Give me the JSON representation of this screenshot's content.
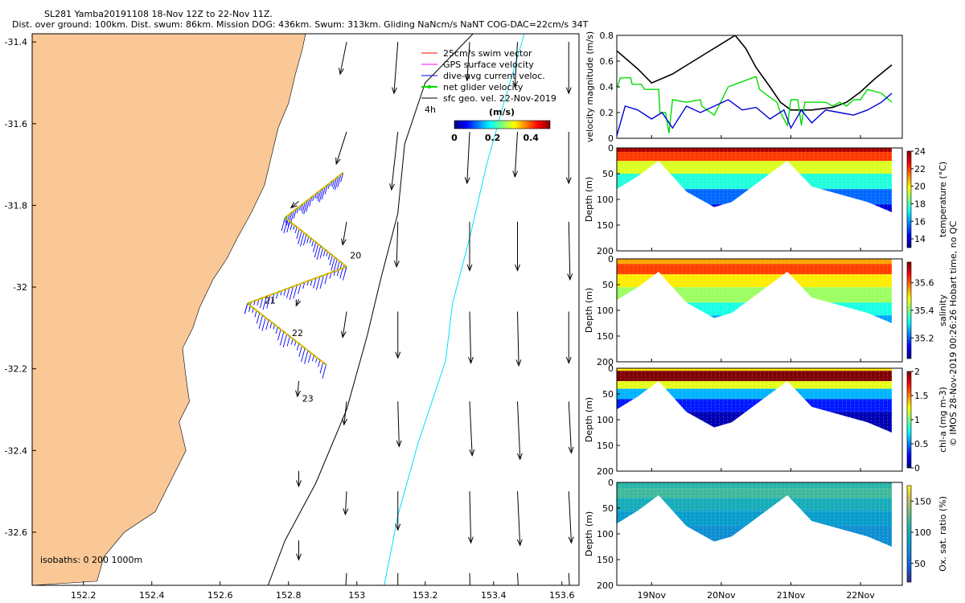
{
  "header": {
    "title": "SL281 Yamba20191108 18-Nov 12Z to 22-Nov 11Z.",
    "stats": "Dist. over ground: 100km. Dist. swum: 86km. Mission DOG: 436km. Swum: 313km. Gliding NaNcm/s NaNT COG-DAC=22cm/s 34T"
  },
  "colors": {
    "land": "#f9c896",
    "ocean": "#ffffff",
    "swim_vector": "#ff0000",
    "gps_velocity": "#ff00ff",
    "dive_avg": "#0000ff",
    "net_glider": "#00dd00",
    "sfc_geo": "#000000",
    "isobath_200": "#000000",
    "isobath_1000": "#00e0ff",
    "vel_black": "#000000",
    "vel_green": "#00dd00",
    "vel_blue": "#0000dd"
  },
  "chart_data": [
    {
      "type": "map",
      "name": "glider-track-map",
      "xlim": [
        152.05,
        153.65
      ],
      "ylim": [
        -32.73,
        -31.38
      ],
      "x_ticks": [
        152.2,
        152.4,
        152.6,
        152.8,
        153,
        153.2,
        153.4,
        153.6
      ],
      "x_tick_labels": [
        "152.2",
        "152.4",
        "152.6",
        "152.8",
        "153",
        "153.2",
        "153.4",
        "153.6"
      ],
      "y_ticks": [
        -31.4,
        -31.6,
        -31.8,
        -32,
        -32.2,
        -32.4,
        -32.6
      ],
      "y_tick_labels": [
        "-31.4",
        "-31.6",
        "-31.8",
        "-32",
        "-32.2",
        "-32.4",
        "-32.6"
      ],
      "legend": [
        {
          "label": "25cm/s swim vector",
          "color": "#ff0000",
          "marker": "line"
        },
        {
          "label": "GPS surface velocity",
          "color": "#ff00ff",
          "marker": "line"
        },
        {
          "label": "dive-avg current veloc.",
          "color": "#0000ff",
          "marker": "line"
        },
        {
          "label": "net glider velocity",
          "color": "#00dd00",
          "marker": "dot-line"
        },
        {
          "label": "sfc geo. vel. 22-Nov-2019",
          "color": "#000000",
          "marker": "line"
        }
      ],
      "legend_extra": "4h",
      "colorbar_title": "(m/s)",
      "colorbar_ticks": [
        0,
        0.2,
        0.4
      ],
      "colorbar_tick_labels": [
        "0",
        "0.2",
        "0.4"
      ],
      "colorbar_range": [
        0,
        0.5
      ],
      "isobaths_text": "isobaths: 0   200   1000m",
      "day_labels": [
        {
          "text": "20",
          "lon": 152.98,
          "lat": -31.93
        },
        {
          "text": "21",
          "lon": 152.73,
          "lat": -32.04
        },
        {
          "text": "22",
          "lon": 152.81,
          "lat": -32.12
        },
        {
          "text": "23",
          "lon": 152.84,
          "lat": -32.28
        }
      ],
      "coastline": [
        [
          152.05,
          -32.73
        ],
        [
          152.24,
          -32.72
        ],
        [
          152.26,
          -32.66
        ],
        [
          152.32,
          -32.6
        ],
        [
          152.41,
          -32.55
        ],
        [
          152.47,
          -32.45
        ],
        [
          152.5,
          -32.4
        ],
        [
          152.48,
          -32.33
        ],
        [
          152.51,
          -32.28
        ],
        [
          152.5,
          -32.22
        ],
        [
          152.49,
          -32.15
        ],
        [
          152.52,
          -32.1
        ],
        [
          152.54,
          -32.05
        ],
        [
          152.58,
          -31.98
        ],
        [
          152.62,
          -31.93
        ],
        [
          152.65,
          -31.88
        ],
        [
          152.69,
          -31.82
        ],
        [
          152.73,
          -31.75
        ],
        [
          152.75,
          -31.68
        ],
        [
          152.77,
          -31.61
        ],
        [
          152.8,
          -31.55
        ],
        [
          152.82,
          -31.48
        ],
        [
          152.84,
          -31.42
        ],
        [
          152.85,
          -31.38
        ],
        [
          152.05,
          -31.38
        ]
      ],
      "isobath_200m": [
        [
          153.34,
          -31.38
        ],
        [
          153.2,
          -31.5
        ],
        [
          153.14,
          -31.65
        ],
        [
          153.12,
          -31.82
        ],
        [
          153.07,
          -31.98
        ],
        [
          153.03,
          -32.12
        ],
        [
          152.97,
          -32.3
        ],
        [
          152.88,
          -32.48
        ],
        [
          152.79,
          -32.62
        ],
        [
          152.74,
          -32.73
        ]
      ],
      "isobath_1000m": [
        [
          153.49,
          -31.38
        ],
        [
          153.43,
          -31.55
        ],
        [
          153.38,
          -31.7
        ],
        [
          153.33,
          -31.88
        ],
        [
          153.28,
          -32.04
        ],
        [
          153.26,
          -32.18
        ],
        [
          153.18,
          -32.38
        ],
        [
          153.12,
          -32.56
        ],
        [
          153.08,
          -32.73
        ]
      ],
      "track_segments": [
        {
          "from": [
            152.96,
            -31.72
          ],
          "to": [
            152.79,
            -31.83
          ]
        },
        {
          "from": [
            152.79,
            -31.83
          ],
          "to": [
            152.97,
            -31.95
          ]
        },
        {
          "from": [
            152.97,
            -31.95
          ],
          "to": [
            152.68,
            -32.04
          ]
        },
        {
          "from": [
            152.68,
            -32.04
          ],
          "to": [
            152.91,
            -32.19
          ]
        }
      ],
      "current_dir_deg": 195,
      "geo_vectors": [
        {
          "lon": 152.97,
          "lat": -31.4,
          "u": -0.05,
          "v": -0.25
        },
        {
          "lon": 153.12,
          "lat": -31.4,
          "u": -0.03,
          "v": -0.4
        },
        {
          "lon": 153.33,
          "lat": -31.4,
          "u": -0.02,
          "v": -0.3
        },
        {
          "lon": 153.47,
          "lat": -31.4,
          "u": -0.02,
          "v": -0.35
        },
        {
          "lon": 153.62,
          "lat": -31.4,
          "u": 0.0,
          "v": -0.4
        },
        {
          "lon": 152.97,
          "lat": -31.62,
          "u": -0.08,
          "v": -0.25
        },
        {
          "lon": 153.12,
          "lat": -31.62,
          "u": -0.05,
          "v": -0.45
        },
        {
          "lon": 153.33,
          "lat": -31.62,
          "u": -0.02,
          "v": -0.4
        },
        {
          "lon": 153.47,
          "lat": -31.62,
          "u": -0.02,
          "v": -0.35
        },
        {
          "lon": 153.62,
          "lat": -31.62,
          "u": 0.0,
          "v": -0.4
        },
        {
          "lon": 152.97,
          "lat": -31.84,
          "u": -0.03,
          "v": -0.18
        },
        {
          "lon": 153.12,
          "lat": -31.84,
          "u": -0.01,
          "v": -0.35
        },
        {
          "lon": 153.33,
          "lat": -31.84,
          "u": 0.0,
          "v": -0.38
        },
        {
          "lon": 153.47,
          "lat": -31.84,
          "u": 0.0,
          "v": -0.38
        },
        {
          "lon": 153.62,
          "lat": -31.84,
          "u": 0.01,
          "v": -0.45
        },
        {
          "lon": 152.97,
          "lat": -32.06,
          "u": -0.03,
          "v": -0.2
        },
        {
          "lon": 153.12,
          "lat": -32.06,
          "u": 0.0,
          "v": -0.36
        },
        {
          "lon": 153.33,
          "lat": -32.06,
          "u": 0.01,
          "v": -0.4
        },
        {
          "lon": 153.47,
          "lat": -32.06,
          "u": 0.01,
          "v": -0.42
        },
        {
          "lon": 153.62,
          "lat": -32.06,
          "u": 0.0,
          "v": -0.4
        },
        {
          "lon": 152.97,
          "lat": -32.28,
          "u": -0.02,
          "v": -0.18
        },
        {
          "lon": 153.12,
          "lat": -32.28,
          "u": 0.01,
          "v": -0.35
        },
        {
          "lon": 153.33,
          "lat": -32.28,
          "u": 0.02,
          "v": -0.42
        },
        {
          "lon": 153.47,
          "lat": -32.28,
          "u": 0.02,
          "v": -0.45
        },
        {
          "lon": 153.62,
          "lat": -32.28,
          "u": 0.02,
          "v": -0.4
        },
        {
          "lon": 152.97,
          "lat": -32.5,
          "u": -0.01,
          "v": -0.18
        },
        {
          "lon": 153.12,
          "lat": -32.5,
          "u": 0.0,
          "v": -0.3
        },
        {
          "lon": 153.33,
          "lat": -32.5,
          "u": 0.01,
          "v": -0.4
        },
        {
          "lon": 153.47,
          "lat": -32.5,
          "u": 0.02,
          "v": -0.42
        },
        {
          "lon": 153.62,
          "lat": -32.5,
          "u": 0.02,
          "v": -0.4
        },
        {
          "lon": 152.97,
          "lat": -32.7,
          "u": -0.01,
          "v": -0.15
        },
        {
          "lon": 153.12,
          "lat": -32.7,
          "u": 0.0,
          "v": -0.3
        },
        {
          "lon": 153.33,
          "lat": -32.7,
          "u": 0.01,
          "v": -0.35
        },
        {
          "lon": 153.47,
          "lat": -32.7,
          "u": 0.02,
          "v": -0.35
        },
        {
          "lon": 153.62,
          "lat": -32.7,
          "u": 0.02,
          "v": -0.35
        },
        {
          "lon": 152.83,
          "lat": -31.79,
          "u": -0.06,
          "v": -0.05
        },
        {
          "lon": 152.83,
          "lat": -32.03,
          "u": -0.02,
          "v": -0.05
        },
        {
          "lon": 152.83,
          "lat": -32.23,
          "u": -0.01,
          "v": -0.12
        },
        {
          "lon": 152.83,
          "lat": -32.45,
          "u": 0.0,
          "v": -0.12
        },
        {
          "lon": 152.83,
          "lat": -32.62,
          "u": 0.0,
          "v": -0.15
        }
      ]
    },
    {
      "type": "line",
      "name": "velocity-magnitude",
      "ylabel": "velocity magnitude (m/s)",
      "xlim": [
        18.5,
        22.6
      ],
      "ylim": [
        0,
        0.8
      ],
      "y_ticks": [
        0,
        0.2,
        0.4,
        0.6,
        0.8
      ],
      "y_tick_labels": [
        "0",
        "0.2",
        "0.4",
        "0.6",
        "0.8"
      ],
      "series": [
        {
          "name": "black",
          "color": "#000000",
          "x": [
            18.5,
            18.8,
            19.0,
            19.3,
            19.6,
            19.9,
            20.2,
            20.35,
            20.5,
            20.7,
            20.85,
            21.0,
            21.3,
            21.6,
            21.8,
            22.0,
            22.2,
            22.45
          ],
          "y": [
            0.68,
            0.54,
            0.43,
            0.5,
            0.6,
            0.7,
            0.8,
            0.7,
            0.55,
            0.4,
            0.28,
            0.22,
            0.22,
            0.24,
            0.28,
            0.36,
            0.46,
            0.57
          ]
        },
        {
          "name": "green",
          "color": "#00dd00",
          "x": [
            18.5,
            18.55,
            18.7,
            18.72,
            18.85,
            18.9,
            19.1,
            19.12,
            19.2,
            19.25,
            19.3,
            19.5,
            19.7,
            19.72,
            19.9,
            20.1,
            20.2,
            20.4,
            20.5,
            20.55,
            20.62,
            20.8,
            20.85,
            20.95,
            21.0,
            21.1,
            21.15,
            21.2,
            21.4,
            21.5,
            21.6,
            21.7,
            21.8,
            21.9,
            22.0,
            22.1,
            22.3,
            22.45
          ],
          "y": [
            0.38,
            0.47,
            0.47,
            0.42,
            0.42,
            0.38,
            0.38,
            0.2,
            0.2,
            0.04,
            0.3,
            0.28,
            0.3,
            0.25,
            0.18,
            0.4,
            0.42,
            0.46,
            0.48,
            0.38,
            0.35,
            0.28,
            0.2,
            0.1,
            0.3,
            0.3,
            0.1,
            0.28,
            0.28,
            0.28,
            0.25,
            0.28,
            0.25,
            0.3,
            0.3,
            0.38,
            0.35,
            0.28
          ]
        },
        {
          "name": "blue",
          "color": "#0000dd",
          "x": [
            18.5,
            18.62,
            18.8,
            19.0,
            19.15,
            19.3,
            19.5,
            19.7,
            19.9,
            20.1,
            20.3,
            20.5,
            20.7,
            20.9,
            21.0,
            21.15,
            21.3,
            21.5,
            21.7,
            21.9,
            22.1,
            22.3,
            22.45
          ],
          "y": [
            0.02,
            0.25,
            0.22,
            0.15,
            0.2,
            0.08,
            0.25,
            0.2,
            0.25,
            0.3,
            0.22,
            0.24,
            0.15,
            0.22,
            0.08,
            0.22,
            0.12,
            0.22,
            0.2,
            0.18,
            0.22,
            0.28,
            0.35
          ]
        }
      ]
    },
    {
      "type": "heatmap",
      "name": "temperature-section",
      "ylabel": "Depth (m)",
      "clabel": "temperature (°C)",
      "ylim": [
        0,
        200
      ],
      "y_ticks": [
        0,
        50,
        100,
        150,
        200
      ],
      "y_tick_labels": [
        "0",
        "50",
        "100",
        "150",
        "200"
      ],
      "cticks": [
        14,
        16,
        18,
        20,
        22,
        24
      ],
      "ctick_labels": [
        "14",
        "16",
        "18",
        "20",
        "22",
        "24"
      ],
      "crange": [
        13,
        24
      ],
      "layers": [
        {
          "top": 0,
          "value": 23.5
        },
        {
          "top": 8,
          "value": 22.0
        },
        {
          "top": 25,
          "value": 19.5
        },
        {
          "top": 50,
          "value": 17.5
        },
        {
          "top": 80,
          "value": 15.5
        },
        {
          "top": 110,
          "value": 14.0
        }
      ]
    },
    {
      "type": "heatmap",
      "name": "salinity-section",
      "ylabel": "Depth (m)",
      "clabel": "salinity",
      "ylim": [
        0,
        200
      ],
      "y_ticks": [
        0,
        50,
        100,
        150,
        200
      ],
      "y_tick_labels": [
        "0",
        "50",
        "100",
        "150",
        "200"
      ],
      "cticks": [
        35.2,
        35.4,
        35.6
      ],
      "ctick_labels": [
        "35.2",
        "35.4",
        "35.6"
      ],
      "crange": [
        35.05,
        35.75
      ],
      "layers": [
        {
          "top": 0,
          "value": 35.55
        },
        {
          "top": 10,
          "value": 35.62
        },
        {
          "top": 30,
          "value": 35.5
        },
        {
          "top": 55,
          "value": 35.42
        },
        {
          "top": 85,
          "value": 35.33
        },
        {
          "top": 110,
          "value": 35.25
        }
      ]
    },
    {
      "type": "heatmap",
      "name": "chlorophyll-section",
      "ylabel": "Depth (m)",
      "clabel": "chl-a (mg m-3)",
      "ylim": [
        0,
        200
      ],
      "y_ticks": [
        0,
        50,
        100,
        150,
        200
      ],
      "y_tick_labels": [
        "0",
        "50",
        "100",
        "150",
        "200"
      ],
      "cticks": [
        0,
        0.5,
        1,
        1.5,
        2
      ],
      "ctick_labels": [
        "0",
        "0.5",
        "1",
        "1.5",
        "2"
      ],
      "crange": [
        0,
        2
      ],
      "layers": [
        {
          "top": 0,
          "value": 1.3
        },
        {
          "top": 5,
          "value": 2.0
        },
        {
          "top": 25,
          "value": 1.2
        },
        {
          "top": 40,
          "value": 0.6
        },
        {
          "top": 60,
          "value": 0.3
        },
        {
          "top": 85,
          "value": 0.1
        }
      ]
    },
    {
      "type": "heatmap",
      "name": "oxygen-section",
      "ylabel": "Depth (m)",
      "clabel": "Ox. sat. ratio (%)",
      "xlim": [
        18.5,
        22.6
      ],
      "x_ticks": [
        19,
        20,
        21,
        22
      ],
      "x_tick_labels": [
        "19Nov",
        "20Nov",
        "21Nov",
        "22Nov"
      ],
      "ylim": [
        0,
        200
      ],
      "y_ticks": [
        0,
        50,
        100,
        150,
        200
      ],
      "y_tick_labels": [
        "0",
        "50",
        "100",
        "150",
        "200"
      ],
      "cticks": [
        50,
        100,
        150
      ],
      "ctick_labels": [
        "50",
        "100",
        "150"
      ],
      "crange": [
        20,
        175
      ],
      "layers": [
        {
          "top": 0,
          "value": 110
        },
        {
          "top": 12,
          "value": 118
        },
        {
          "top": 30,
          "value": 100
        },
        {
          "top": 55,
          "value": 85
        },
        {
          "top": 85,
          "value": 75
        }
      ]
    }
  ],
  "section_depth_profile": {
    "x": [
      18.5,
      18.8,
      19.1,
      19.5,
      19.9,
      20.15,
      20.6,
      20.95,
      21.3,
      21.7,
      22.1,
      22.45
    ],
    "depth": [
      80,
      55,
      25,
      85,
      115,
      105,
      60,
      25,
      75,
      90,
      105,
      125
    ]
  },
  "side_note": "© IMOS 28-Nov-2019 00:26:26 Hobart time, no QC"
}
